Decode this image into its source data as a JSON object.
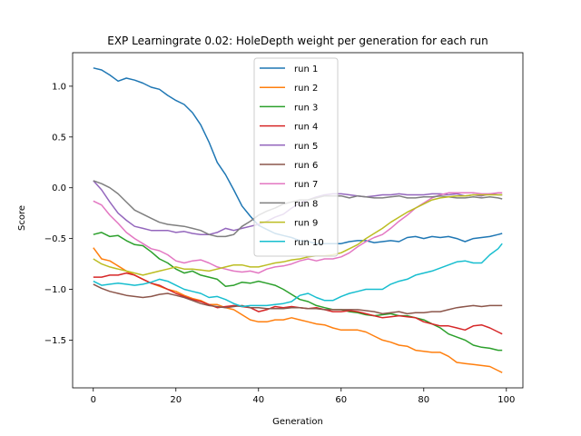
{
  "chart_data": {
    "type": "line",
    "title": "EXP Learningrate 0.02: HoleDepth weight per generation for each run",
    "xlabel": "Generation",
    "ylabel": "Score",
    "xlim": [
      -5,
      104
    ],
    "ylim": [
      -1.97,
      1.33
    ],
    "xticks": [
      0,
      20,
      40,
      60,
      80,
      100
    ],
    "yticks": [
      -1.5,
      -1.0,
      -0.5,
      0.0,
      0.5,
      1.0
    ],
    "ytick_labels": [
      "−1.5",
      "−1.0",
      "−0.5",
      "0.0",
      "0.5",
      "1.0"
    ],
    "grid": false,
    "legend_position": "upper-center",
    "series": [
      {
        "name": "run 1",
        "color": "#1f77b4",
        "x": [
          0,
          2,
          4,
          6,
          8,
          10,
          12,
          14,
          16,
          18,
          20,
          22,
          24,
          26,
          28,
          30,
          32,
          34,
          36,
          38,
          40,
          42,
          44,
          46,
          48,
          50,
          52,
          54,
          56,
          58,
          60,
          62,
          64,
          66,
          68,
          70,
          72,
          74,
          76,
          78,
          80,
          82,
          84,
          86,
          88,
          90,
          92,
          94,
          96,
          98,
          99
        ],
        "y": [
          1.18,
          1.16,
          1.11,
          1.05,
          1.08,
          1.06,
          1.03,
          0.99,
          0.97,
          0.91,
          0.86,
          0.82,
          0.74,
          0.62,
          0.45,
          0.25,
          0.13,
          -0.02,
          -0.18,
          -0.28,
          -0.37,
          -0.41,
          -0.45,
          -0.47,
          -0.49,
          -0.52,
          -0.53,
          -0.55,
          -0.55,
          -0.55,
          -0.55,
          -0.53,
          -0.52,
          -0.52,
          -0.54,
          -0.53,
          -0.52,
          -0.53,
          -0.49,
          -0.48,
          -0.5,
          -0.48,
          -0.49,
          -0.48,
          -0.5,
          -0.53,
          -0.5,
          -0.49,
          -0.48,
          -0.46,
          -0.45
        ]
      },
      {
        "name": "run 2",
        "color": "#ff7f0e",
        "x": [
          0,
          2,
          4,
          6,
          8,
          10,
          12,
          14,
          16,
          18,
          20,
          22,
          24,
          26,
          28,
          30,
          32,
          34,
          36,
          38,
          40,
          42,
          44,
          46,
          48,
          50,
          52,
          54,
          56,
          58,
          60,
          62,
          64,
          66,
          68,
          70,
          72,
          74,
          76,
          78,
          80,
          82,
          84,
          86,
          88,
          90,
          92,
          94,
          96,
          98,
          99
        ],
        "y": [
          -0.59,
          -0.7,
          -0.72,
          -0.77,
          -0.82,
          -0.86,
          -0.9,
          -0.94,
          -0.97,
          -1.0,
          -1.02,
          -1.06,
          -1.09,
          -1.11,
          -1.15,
          -1.15,
          -1.18,
          -1.2,
          -1.25,
          -1.3,
          -1.32,
          -1.32,
          -1.3,
          -1.3,
          -1.28,
          -1.3,
          -1.32,
          -1.34,
          -1.35,
          -1.38,
          -1.4,
          -1.4,
          -1.4,
          -1.42,
          -1.46,
          -1.5,
          -1.52,
          -1.55,
          -1.56,
          -1.6,
          -1.61,
          -1.62,
          -1.62,
          -1.66,
          -1.72,
          -1.73,
          -1.74,
          -1.75,
          -1.76,
          -1.8,
          -1.82
        ]
      },
      {
        "name": "run 3",
        "color": "#2ca02c",
        "x": [
          0,
          2,
          4,
          6,
          8,
          10,
          12,
          14,
          16,
          18,
          20,
          22,
          24,
          26,
          28,
          30,
          32,
          34,
          36,
          38,
          40,
          42,
          44,
          46,
          48,
          50,
          52,
          54,
          56,
          58,
          60,
          62,
          64,
          66,
          68,
          70,
          72,
          74,
          76,
          78,
          80,
          82,
          84,
          86,
          88,
          90,
          92,
          94,
          96,
          98,
          99
        ],
        "y": [
          -0.46,
          -0.44,
          -0.48,
          -0.47,
          -0.52,
          -0.56,
          -0.57,
          -0.63,
          -0.7,
          -0.74,
          -0.8,
          -0.84,
          -0.82,
          -0.86,
          -0.88,
          -0.9,
          -0.97,
          -0.96,
          -0.93,
          -0.94,
          -0.92,
          -0.94,
          -0.96,
          -1.0,
          -1.05,
          -1.1,
          -1.12,
          -1.16,
          -1.18,
          -1.2,
          -1.2,
          -1.22,
          -1.23,
          -1.25,
          -1.26,
          -1.25,
          -1.24,
          -1.26,
          -1.26,
          -1.28,
          -1.3,
          -1.34,
          -1.38,
          -1.44,
          -1.47,
          -1.5,
          -1.55,
          -1.57,
          -1.58,
          -1.6,
          -1.6
        ]
      },
      {
        "name": "run 4",
        "color": "#d62728",
        "x": [
          0,
          2,
          4,
          6,
          8,
          10,
          12,
          14,
          16,
          18,
          20,
          22,
          24,
          26,
          28,
          30,
          32,
          34,
          36,
          38,
          40,
          42,
          44,
          46,
          48,
          50,
          52,
          54,
          56,
          58,
          60,
          62,
          64,
          66,
          68,
          70,
          72,
          74,
          76,
          78,
          80,
          82,
          84,
          86,
          88,
          90,
          92,
          94,
          96,
          98,
          99
        ],
        "y": [
          -0.88,
          -0.88,
          -0.86,
          -0.86,
          -0.84,
          -0.86,
          -0.9,
          -0.94,
          -0.96,
          -1.0,
          -1.04,
          -1.07,
          -1.1,
          -1.12,
          -1.15,
          -1.18,
          -1.17,
          -1.16,
          -1.17,
          -1.18,
          -1.22,
          -1.2,
          -1.17,
          -1.18,
          -1.17,
          -1.18,
          -1.19,
          -1.18,
          -1.2,
          -1.22,
          -1.22,
          -1.21,
          -1.22,
          -1.24,
          -1.26,
          -1.28,
          -1.27,
          -1.26,
          -1.27,
          -1.28,
          -1.32,
          -1.34,
          -1.36,
          -1.36,
          -1.38,
          -1.4,
          -1.36,
          -1.35,
          -1.38,
          -1.42,
          -1.44
        ]
      },
      {
        "name": "run 5",
        "color": "#9467bd",
        "x": [
          0,
          2,
          4,
          6,
          8,
          10,
          12,
          14,
          16,
          18,
          20,
          22,
          24,
          26,
          28,
          30,
          32,
          34,
          36,
          38,
          40,
          42,
          44,
          46,
          48,
          50,
          52,
          54,
          56,
          58,
          60,
          62,
          64,
          66,
          68,
          70,
          72,
          74,
          76,
          78,
          80,
          82,
          84,
          86,
          88,
          90,
          92,
          94,
          96,
          98,
          99
        ],
        "y": [
          0.07,
          -0.02,
          -0.14,
          -0.25,
          -0.32,
          -0.38,
          -0.4,
          -0.42,
          -0.42,
          -0.42,
          -0.44,
          -0.43,
          -0.45,
          -0.46,
          -0.46,
          -0.44,
          -0.4,
          -0.42,
          -0.4,
          -0.38,
          -0.36,
          -0.33,
          -0.29,
          -0.26,
          -0.2,
          -0.15,
          -0.12,
          -0.09,
          -0.07,
          -0.06,
          -0.06,
          -0.07,
          -0.08,
          -0.09,
          -0.08,
          -0.07,
          -0.07,
          -0.06,
          -0.07,
          -0.07,
          -0.07,
          -0.06,
          -0.06,
          -0.07,
          -0.06,
          -0.08,
          -0.07,
          -0.08,
          -0.06,
          -0.07,
          -0.07
        ]
      },
      {
        "name": "run 6",
        "color": "#8c564b",
        "x": [
          0,
          2,
          4,
          6,
          8,
          10,
          12,
          14,
          16,
          18,
          20,
          22,
          24,
          26,
          28,
          30,
          32,
          34,
          36,
          38,
          40,
          42,
          44,
          46,
          48,
          50,
          52,
          54,
          56,
          58,
          60,
          62,
          64,
          66,
          68,
          70,
          72,
          74,
          76,
          78,
          80,
          82,
          84,
          86,
          88,
          90,
          92,
          94,
          96,
          98,
          99
        ],
        "y": [
          -0.95,
          -0.99,
          -1.02,
          -1.04,
          -1.06,
          -1.07,
          -1.08,
          -1.07,
          -1.05,
          -1.04,
          -1.06,
          -1.08,
          -1.11,
          -1.14,
          -1.16,
          -1.17,
          -1.18,
          -1.17,
          -1.16,
          -1.18,
          -1.18,
          -1.19,
          -1.19,
          -1.19,
          -1.18,
          -1.18,
          -1.19,
          -1.19,
          -1.2,
          -1.2,
          -1.2,
          -1.2,
          -1.2,
          -1.21,
          -1.22,
          -1.24,
          -1.23,
          -1.22,
          -1.24,
          -1.23,
          -1.23,
          -1.22,
          -1.22,
          -1.2,
          -1.18,
          -1.17,
          -1.16,
          -1.17,
          -1.16,
          -1.16,
          -1.16
        ]
      },
      {
        "name": "run 7",
        "color": "#e377c2",
        "x": [
          0,
          2,
          4,
          6,
          8,
          10,
          12,
          14,
          16,
          18,
          20,
          22,
          24,
          26,
          28,
          30,
          32,
          34,
          36,
          38,
          40,
          42,
          44,
          46,
          48,
          50,
          52,
          54,
          56,
          58,
          60,
          62,
          64,
          66,
          68,
          70,
          72,
          74,
          76,
          78,
          80,
          82,
          84,
          86,
          88,
          90,
          92,
          94,
          96,
          98,
          99
        ],
        "y": [
          -0.13,
          -0.17,
          -0.27,
          -0.35,
          -0.44,
          -0.5,
          -0.55,
          -0.6,
          -0.62,
          -0.66,
          -0.72,
          -0.74,
          -0.72,
          -0.71,
          -0.74,
          -0.78,
          -0.8,
          -0.82,
          -0.83,
          -0.82,
          -0.84,
          -0.8,
          -0.78,
          -0.77,
          -0.75,
          -0.72,
          -0.7,
          -0.72,
          -0.7,
          -0.7,
          -0.68,
          -0.64,
          -0.58,
          -0.53,
          -0.49,
          -0.46,
          -0.4,
          -0.33,
          -0.27,
          -0.2,
          -0.15,
          -0.1,
          -0.07,
          -0.05,
          -0.05,
          -0.05,
          -0.05,
          -0.06,
          -0.06,
          -0.05,
          -0.05
        ]
      },
      {
        "name": "run 8",
        "color": "#7f7f7f",
        "x": [
          0,
          2,
          4,
          6,
          8,
          10,
          12,
          14,
          16,
          18,
          20,
          22,
          24,
          26,
          28,
          30,
          32,
          34,
          36,
          38,
          40,
          42,
          44,
          46,
          48,
          50,
          52,
          54,
          56,
          58,
          60,
          62,
          64,
          66,
          68,
          70,
          72,
          74,
          76,
          78,
          80,
          82,
          84,
          86,
          88,
          90,
          92,
          94,
          96,
          98,
          99
        ],
        "y": [
          0.07,
          0.04,
          0.0,
          -0.06,
          -0.14,
          -0.22,
          -0.26,
          -0.3,
          -0.34,
          -0.36,
          -0.37,
          -0.38,
          -0.4,
          -0.42,
          -0.46,
          -0.48,
          -0.48,
          -0.46,
          -0.38,
          -0.33,
          -0.27,
          -0.23,
          -0.2,
          -0.16,
          -0.14,
          -0.12,
          -0.12,
          -0.1,
          -0.08,
          -0.08,
          -0.08,
          -0.1,
          -0.08,
          -0.09,
          -0.1,
          -0.1,
          -0.09,
          -0.08,
          -0.1,
          -0.1,
          -0.09,
          -0.09,
          -0.08,
          -0.09,
          -0.1,
          -0.1,
          -0.09,
          -0.1,
          -0.09,
          -0.1,
          -0.11
        ]
      },
      {
        "name": "run 9",
        "color": "#bcbd22",
        "x": [
          0,
          2,
          4,
          6,
          8,
          10,
          12,
          14,
          16,
          18,
          20,
          22,
          24,
          26,
          28,
          30,
          32,
          34,
          36,
          38,
          40,
          42,
          44,
          46,
          48,
          50,
          52,
          54,
          56,
          58,
          60,
          62,
          64,
          66,
          68,
          70,
          72,
          74,
          76,
          78,
          80,
          82,
          84,
          86,
          88,
          90,
          92,
          94,
          96,
          98,
          99
        ],
        "y": [
          -0.7,
          -0.75,
          -0.78,
          -0.8,
          -0.82,
          -0.84,
          -0.86,
          -0.84,
          -0.82,
          -0.8,
          -0.78,
          -0.8,
          -0.8,
          -0.81,
          -0.82,
          -0.8,
          -0.78,
          -0.76,
          -0.76,
          -0.78,
          -0.78,
          -0.76,
          -0.74,
          -0.73,
          -0.71,
          -0.7,
          -0.68,
          -0.67,
          -0.67,
          -0.66,
          -0.64,
          -0.6,
          -0.56,
          -0.5,
          -0.45,
          -0.4,
          -0.34,
          -0.29,
          -0.24,
          -0.2,
          -0.16,
          -0.12,
          -0.1,
          -0.09,
          -0.08,
          -0.08,
          -0.07,
          -0.07,
          -0.07,
          -0.07,
          -0.07
        ]
      },
      {
        "name": "run 10",
        "color": "#17becf",
        "x": [
          0,
          2,
          4,
          6,
          8,
          10,
          12,
          14,
          16,
          18,
          20,
          22,
          24,
          26,
          28,
          30,
          32,
          34,
          36,
          38,
          40,
          42,
          44,
          46,
          48,
          50,
          52,
          54,
          56,
          58,
          60,
          62,
          64,
          66,
          68,
          70,
          72,
          74,
          76,
          78,
          80,
          82,
          84,
          86,
          88,
          90,
          92,
          94,
          96,
          98,
          99
        ],
        "y": [
          -0.92,
          -0.96,
          -0.95,
          -0.94,
          -0.95,
          -0.96,
          -0.95,
          -0.93,
          -0.9,
          -0.92,
          -0.96,
          -1.0,
          -1.02,
          -1.04,
          -1.08,
          -1.07,
          -1.1,
          -1.14,
          -1.17,
          -1.16,
          -1.16,
          -1.16,
          -1.15,
          -1.14,
          -1.12,
          -1.06,
          -1.04,
          -1.08,
          -1.11,
          -1.11,
          -1.07,
          -1.04,
          -1.02,
          -1.0,
          -1.0,
          -1.0,
          -0.95,
          -0.92,
          -0.9,
          -0.86,
          -0.84,
          -0.82,
          -0.79,
          -0.76,
          -0.73,
          -0.72,
          -0.74,
          -0.74,
          -0.66,
          -0.6,
          -0.55
        ]
      }
    ]
  }
}
